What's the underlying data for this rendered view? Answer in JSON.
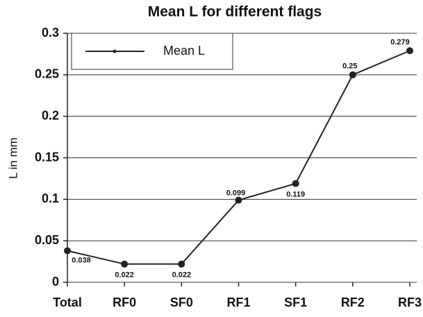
{
  "chart_data": {
    "type": "line",
    "title": "Mean L for different flags",
    "y_label": "L in mm",
    "categories": [
      "Total",
      "RF0",
      "SF0",
      "RF1",
      "SF1",
      "RF2",
      "RF3"
    ],
    "series": [
      {
        "name": "Mean L",
        "color": "#222222",
        "values": [
          0.038,
          0.022,
          0.022,
          0.099,
          0.119,
          0.25,
          0.279
        ]
      }
    ],
    "ylim": [
      0,
      0.3
    ],
    "yticks": [
      0,
      0.05,
      0.1,
      0.15,
      0.2,
      0.25,
      0.3
    ],
    "grid": true,
    "legend": "upper left"
  }
}
